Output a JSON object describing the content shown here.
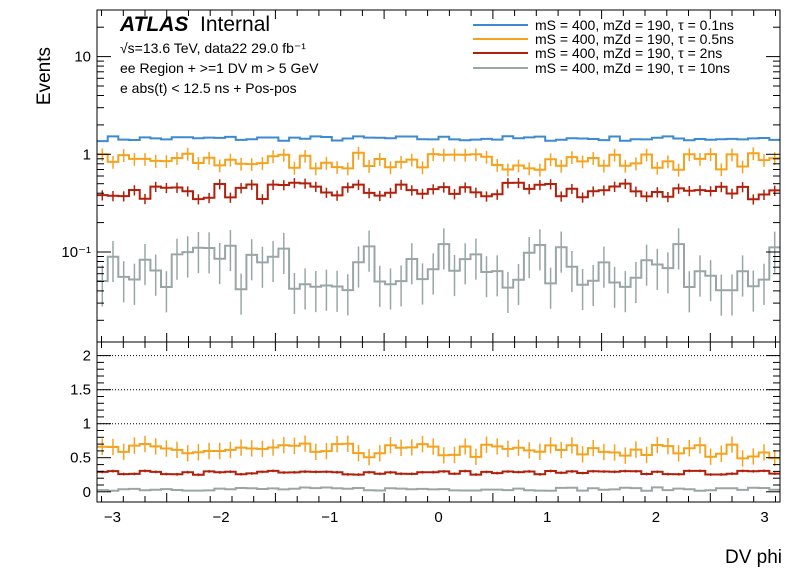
{
  "header": {
    "brand": "ATLAS",
    "status": "Internal",
    "energy_line": "√s=13.6 TeV, data22 29.0 fb⁻¹",
    "region_line": "ee Region + >=1 DV m > 5 GeV",
    "cut_line": "e abs(t) < 12.5 ns + Pos-pos"
  },
  "chart_data": [
    {
      "type": "line",
      "panel": "upper",
      "ylabel": "Events",
      "yscale": "log",
      "ylim": [
        0.012,
        30
      ],
      "xlim": [
        -3.1416,
        3.1416
      ],
      "yticks": [
        {
          "v": 0.1,
          "label": "10⁻¹"
        },
        {
          "v": 1,
          "label": "1"
        },
        {
          "v": 10,
          "label": "10"
        }
      ],
      "legend_position": "top-right",
      "series": [
        {
          "name": "mS = 400, mZd = 190, τ = 0.1ns",
          "color": "#3d8ad1",
          "level": 1.45,
          "noise": 0.06,
          "err": 0.0
        },
        {
          "name": "mS = 400, mZd = 190, τ = 0.5ns",
          "color": "#f5a21e",
          "level": 0.85,
          "noise": 0.2,
          "err": 0.15
        },
        {
          "name": "mS = 400, mZd = 190, τ = 2ns",
          "color": "#b21f0a",
          "level": 0.42,
          "noise": 0.2,
          "err": 0.12
        },
        {
          "name": "mS = 400, mZd = 190, τ = 10ns",
          "color": "#9aa6a6",
          "level": 0.07,
          "noise": 0.55,
          "err": 0.45
        }
      ]
    },
    {
      "type": "line",
      "panel": "lower",
      "ylabel": "",
      "ylim": [
        -0.15,
        2.2
      ],
      "yticks": [
        0,
        0.5,
        1,
        1.5,
        2
      ],
      "xlabel": "DV phi",
      "xticks": [
        -3,
        -2,
        -1,
        0,
        1,
        2,
        3
      ],
      "reference_lines": [
        1.0,
        1.5,
        2.0
      ],
      "series": [
        {
          "name": "mS = 400, mZd = 190, τ = 0.5ns",
          "color": "#f5a21e",
          "level": 0.6,
          "noise": 0.11,
          "err": 0.12
        },
        {
          "name": "mS = 400, mZd = 190, τ = 2ns",
          "color": "#b21f0a",
          "level": 0.28,
          "noise": 0.03,
          "err": 0.02
        },
        {
          "name": "mS = 400, mZd = 190, τ = 10ns",
          "color": "#9aa6a6",
          "level": 0.04,
          "noise": 0.025,
          "err": 0.01
        }
      ]
    }
  ]
}
